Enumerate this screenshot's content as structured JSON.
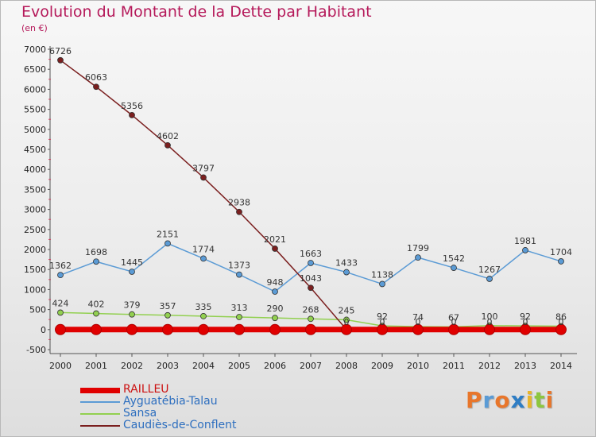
{
  "title": "Evolution du Montant de la Dette par Habitant",
  "subtitle": "(en €)",
  "brand": {
    "text": "Proxiti",
    "colors": [
      "#e8762b",
      "#5a9bd5",
      "#e8762b",
      "#2e7dc4",
      "#e8b52b",
      "#8dc63f",
      "#e8762b"
    ]
  },
  "chart_data": {
    "type": "line",
    "x": [
      "2000",
      "2001",
      "2002",
      "2003",
      "2004",
      "2005",
      "2006",
      "2007",
      "2008",
      "2009",
      "2010",
      "2011",
      "2012",
      "2013",
      "2014"
    ],
    "y_ticks": [
      "7000",
      "6500",
      "6000",
      "5500",
      "5000",
      "4500",
      "4000",
      "3500",
      "3000",
      "2500",
      "2000",
      "1500",
      "1000",
      "500",
      "0",
      "-500"
    ],
    "ylim": [
      -500,
      7000
    ],
    "grid": false,
    "legend_position": "bottom-left",
    "series": [
      {
        "name": "RAILLEU",
        "color": "#e00000",
        "values": [
          0,
          0,
          0,
          0,
          0,
          0,
          0,
          0,
          0,
          0,
          0,
          0,
          0,
          0,
          0
        ],
        "labels": []
      },
      {
        "name": "Ayguatébia-Talau",
        "color": "#5b9bd5",
        "values": [
          1362,
          1698,
          1445,
          2151,
          1774,
          1373,
          948,
          1663,
          1433,
          1138,
          1799,
          1542,
          1267,
          1981,
          1704
        ],
        "labels": [
          "1362",
          "1698",
          "1445",
          "2151",
          "1774",
          "1373",
          "948",
          "1663",
          "1433",
          "1138",
          "1799",
          "1542",
          "1267",
          "1981",
          "1704"
        ]
      },
      {
        "name": "Sansa",
        "color": "#92d050",
        "values": [
          424,
          402,
          379,
          357,
          335,
          313,
          290,
          268,
          245,
          92,
          74,
          67,
          100,
          92,
          86
        ],
        "labels": [
          "424",
          "402",
          "379",
          "357",
          "335",
          "313",
          "290",
          "268",
          "245",
          "92",
          "74",
          "67",
          "100",
          "92",
          "86"
        ]
      },
      {
        "name": "Caudiès-de-Conflent",
        "color": "#7b1f1f",
        "values": [
          6726,
          6063,
          5356,
          4602,
          3797,
          2938,
          2021,
          1043,
          0,
          0,
          0,
          0,
          0,
          0,
          0
        ],
        "labels": [
          "6726",
          "6063",
          "5356",
          "4602",
          "3797",
          "2938",
          "2021",
          "1043",
          "0",
          "0",
          "0",
          "0",
          "0",
          "0",
          "0"
        ]
      }
    ]
  }
}
